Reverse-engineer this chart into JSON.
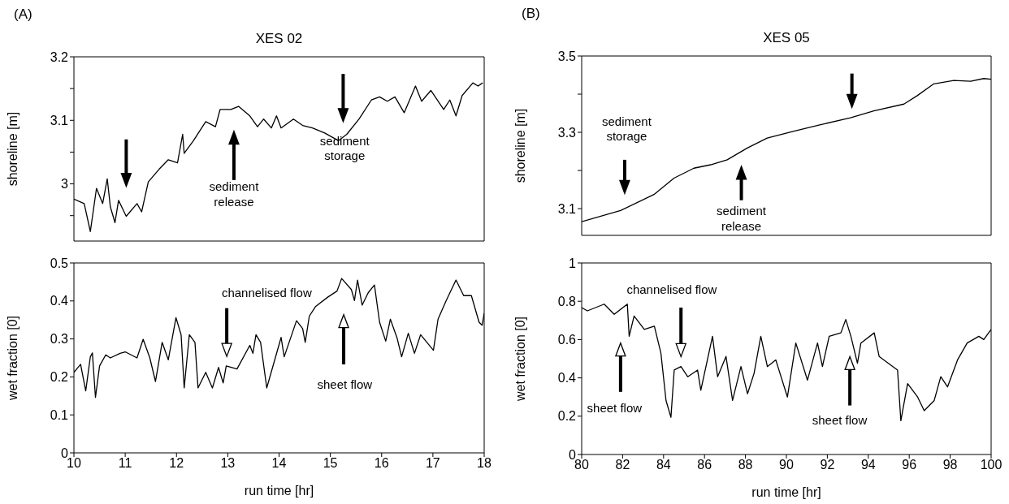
{
  "chart_data": [
    {
      "type": "line",
      "title": "XES 02",
      "ylabel": "shoreline [m]",
      "color": "#000000",
      "tick_labels": "y",
      "annotations": [
        "(A)",
        "sediment release",
        "sediment storage"
      ],
      "xlim": [
        10,
        18
      ],
      "xticks": [
        10,
        11,
        12,
        13,
        14,
        15,
        16,
        17,
        18
      ],
      "ylim": [
        2.91,
        3.2
      ],
      "yticks": [
        {
          "value": 2.95,
          "label": null
        },
        3,
        {
          "value": 3.05,
          "label": null
        },
        3.1,
        {
          "value": 3.15,
          "label": null
        },
        3.2
      ],
      "x": [
        10.0,
        10.2,
        10.32,
        10.44,
        10.56,
        10.65,
        10.71,
        10.8,
        10.87,
        11.02,
        11.23,
        11.32,
        11.45,
        11.66,
        11.84,
        12.02,
        12.12,
        12.15,
        12.33,
        12.57,
        12.76,
        12.85,
        13.06,
        13.21,
        13.43,
        13.58,
        13.7,
        13.85,
        13.95,
        14.04,
        14.28,
        14.46,
        14.65,
        14.89,
        15.16,
        15.32,
        15.56,
        15.8,
        15.96,
        16.11,
        16.26,
        16.44,
        16.66,
        16.78,
        16.96,
        17.21,
        17.33,
        17.45,
        17.57,
        17.78,
        17.88,
        17.97
      ],
      "values": [
        2.976,
        2.969,
        2.925,
        2.993,
        2.969,
        3.008,
        2.964,
        2.939,
        2.974,
        2.949,
        2.969,
        2.956,
        3.003,
        3.023,
        3.038,
        3.033,
        3.078,
        3.048,
        3.068,
        3.098,
        3.09,
        3.117,
        3.117,
        3.122,
        3.107,
        3.09,
        3.102,
        3.088,
        3.107,
        3.088,
        3.102,
        3.092,
        3.088,
        3.08,
        3.068,
        3.078,
        3.102,
        3.132,
        3.137,
        3.13,
        3.137,
        3.112,
        3.154,
        3.13,
        3.147,
        3.117,
        3.132,
        3.107,
        3.139,
        3.159,
        3.154,
        3.159
      ]
    },
    {
      "type": "line",
      "xlabel": "run time [hr]",
      "ylabel": "wet fraction [0]",
      "color": "#000000",
      "annotations": [
        "channelised flow",
        "sheet flow"
      ],
      "xlim": [
        10,
        18
      ],
      "xticks": [
        10,
        11,
        12,
        13,
        14,
        15,
        16,
        17,
        18
      ],
      "ylim": [
        0,
        0.5
      ],
      "yticks": [
        0,
        0.1,
        0.2,
        0.3,
        0.4,
        0.5
      ],
      "x": [
        10,
        10.13,
        10.23,
        10.32,
        10.36,
        10.42,
        10.5,
        10.62,
        10.71,
        10.9,
        11.0,
        11.23,
        11.35,
        11.48,
        11.59,
        11.72,
        11.84,
        11.99,
        12.09,
        12.15,
        12.25,
        12.36,
        12.42,
        12.57,
        12.7,
        12.82,
        12.91,
        12.97,
        13.18,
        13.43,
        13.49,
        13.55,
        13.64,
        13.76,
        14.04,
        14.1,
        14.34,
        14.46,
        14.51,
        14.59,
        14.71,
        14.95,
        15.13,
        15.22,
        15.41,
        15.47,
        15.53,
        15.62,
        15.74,
        15.86,
        15.96,
        16.08,
        16.17,
        16.3,
        16.39,
        16.52,
        16.64,
        16.76,
        17.01,
        17.1,
        17.26,
        17.45,
        17.6,
        17.75,
        17.9,
        17.96,
        18.0
      ],
      "values": [
        0.212,
        0.233,
        0.163,
        0.253,
        0.263,
        0.146,
        0.229,
        0.258,
        0.25,
        0.262,
        0.266,
        0.25,
        0.299,
        0.25,
        0.188,
        0.291,
        0.245,
        0.356,
        0.311,
        0.171,
        0.311,
        0.291,
        0.171,
        0.212,
        0.171,
        0.225,
        0.184,
        0.229,
        0.221,
        0.283,
        0.262,
        0.311,
        0.291,
        0.171,
        0.304,
        0.253,
        0.348,
        0.327,
        0.291,
        0.36,
        0.385,
        0.41,
        0.426,
        0.459,
        0.43,
        0.401,
        0.455,
        0.389,
        0.422,
        0.442,
        0.344,
        0.294,
        0.352,
        0.303,
        0.253,
        0.315,
        0.262,
        0.311,
        0.27,
        0.352,
        0.401,
        0.455,
        0.414,
        0.414,
        0.344,
        0.336,
        0.368
      ]
    },
    {
      "type": "line",
      "title": "XES 05",
      "ylabel": "shoreline [m]",
      "color": "#000000",
      "tick_labels": "y",
      "annotations": [
        "(B)",
        "sediment storage",
        "sediment release"
      ],
      "xlim": [
        80,
        100
      ],
      "xticks": [
        80,
        82,
        84,
        86,
        88,
        90,
        92,
        94,
        96,
        98,
        100
      ],
      "ylim": [
        3.03,
        3.5
      ],
      "yticks": [
        3.1,
        {
          "value": 3.2,
          "label": null
        },
        3.3,
        {
          "value": 3.4,
          "label": null
        },
        3.5
      ],
      "x": [
        80,
        81.9,
        83.53,
        84.51,
        85.48,
        86.3,
        87.11,
        88.09,
        89.06,
        90.37,
        91.67,
        93.13,
        94.27,
        95.74,
        96.39,
        97.2,
        98.18,
        99,
        99.64,
        100
      ],
      "values": [
        3.066,
        3.095,
        3.137,
        3.18,
        3.206,
        3.215,
        3.228,
        3.259,
        3.285,
        3.303,
        3.32,
        3.338,
        3.356,
        3.374,
        3.396,
        3.427,
        3.436,
        3.434,
        3.441,
        3.439
      ]
    },
    {
      "type": "line",
      "xlabel": "run time [hr]",
      "ylabel": "wet fraction [0]",
      "color": "#000000",
      "annotations": [
        "channelised flow",
        "sheet flow",
        "sheet flow"
      ],
      "xlim": [
        80,
        100
      ],
      "xticks": [
        80,
        82,
        84,
        86,
        88,
        90,
        92,
        94,
        96,
        98,
        100
      ],
      "ylim": [
        0,
        1
      ],
      "yticks": [
        0,
        0.2,
        0.4,
        0.6,
        0.8,
        1
      ],
      "x": [
        80,
        80.28,
        81.1,
        81.59,
        82.23,
        82.32,
        82.56,
        83.06,
        83.55,
        83.87,
        84.12,
        84.36,
        84.52,
        84.85,
        85.18,
        85.66,
        85.82,
        86.39,
        86.64,
        87.05,
        87.37,
        87.78,
        88.1,
        88.42,
        88.75,
        89.07,
        89.48,
        90.05,
        90.46,
        91.03,
        91.52,
        91.76,
        92.09,
        92.66,
        92.9,
        93.15,
        93.47,
        93.64,
        94.29,
        94.53,
        95.43,
        95.59,
        95.92,
        96.41,
        96.73,
        97.22,
        97.54,
        97.87,
        98.36,
        98.83,
        99.4,
        99.64,
        100
      ],
      "values": [
        0.767,
        0.75,
        0.785,
        0.732,
        0.785,
        0.617,
        0.723,
        0.653,
        0.67,
        0.529,
        0.282,
        0.194,
        0.441,
        0.459,
        0.406,
        0.441,
        0.335,
        0.617,
        0.406,
        0.512,
        0.282,
        0.459,
        0.317,
        0.423,
        0.617,
        0.459,
        0.494,
        0.3,
        0.582,
        0.388,
        0.582,
        0.459,
        0.617,
        0.635,
        0.705,
        0.617,
        0.476,
        0.582,
        0.635,
        0.512,
        0.441,
        0.176,
        0.37,
        0.3,
        0.229,
        0.282,
        0.406,
        0.353,
        0.494,
        0.582,
        0.617,
        0.6,
        0.653
      ]
    }
  ]
}
